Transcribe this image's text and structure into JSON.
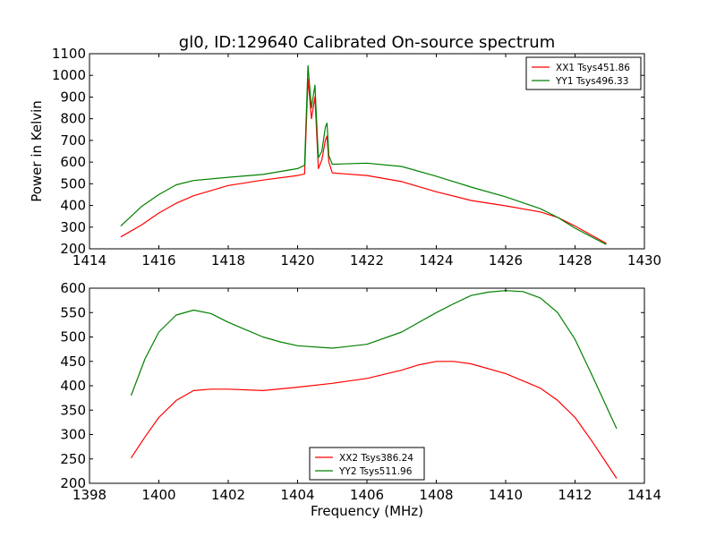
{
  "chart_data": [
    {
      "type": "line",
      "title": "gl0, ID:129640 Calibrated On-source spectrum",
      "xlabel": "",
      "ylabel": "Power in Kelvin",
      "xlim": [
        1414,
        1430
      ],
      "ylim": [
        200,
        1100
      ],
      "xticks": [
        1414,
        1416,
        1418,
        1420,
        1422,
        1424,
        1426,
        1428,
        1430
      ],
      "yticks": [
        200,
        300,
        400,
        500,
        600,
        700,
        800,
        900,
        1000,
        1100
      ],
      "legend": "top-right",
      "grid": false,
      "series": [
        {
          "name": "XX1 Tsys451.86",
          "color": "#ff0000",
          "x": [
            1414.9,
            1415.5,
            1416.0,
            1416.5,
            1417.0,
            1418.0,
            1419.0,
            1420.0,
            1420.2,
            1420.3,
            1420.4,
            1420.5,
            1420.6,
            1420.7,
            1420.8,
            1420.85,
            1420.9,
            1421.0,
            1422.0,
            1423.0,
            1424.0,
            1425.0,
            1426.0,
            1427.0,
            1427.5,
            1428.0,
            1428.9
          ],
          "y": [
            255,
            310,
            365,
            410,
            445,
            492,
            517,
            538,
            545,
            985,
            800,
            900,
            570,
            610,
            700,
            720,
            600,
            550,
            538,
            510,
            463,
            423,
            398,
            370,
            345,
            305,
            225
          ]
        },
        {
          "name": "YY1 Tsys496.33",
          "color": "#008000",
          "x": [
            1414.9,
            1415.5,
            1416.0,
            1416.5,
            1417.0,
            1418.0,
            1419.0,
            1420.0,
            1420.2,
            1420.3,
            1420.4,
            1420.5,
            1420.6,
            1420.7,
            1420.8,
            1420.85,
            1420.9,
            1421.0,
            1422.0,
            1423.0,
            1424.0,
            1425.0,
            1426.0,
            1427.0,
            1427.5,
            1428.0,
            1428.9
          ],
          "y": [
            305,
            395,
            450,
            495,
            515,
            530,
            543,
            570,
            585,
            1045,
            850,
            955,
            620,
            650,
            760,
            780,
            630,
            590,
            595,
            580,
            535,
            485,
            440,
            385,
            345,
            295,
            220
          ]
        }
      ]
    },
    {
      "type": "line",
      "title": "",
      "xlabel": "Frequency (MHz)",
      "ylabel": "",
      "xlim": [
        1398,
        1414
      ],
      "ylim": [
        200,
        600
      ],
      "xticks": [
        1398,
        1400,
        1402,
        1404,
        1406,
        1408,
        1410,
        1412,
        1414
      ],
      "yticks": [
        200,
        250,
        300,
        350,
        400,
        450,
        500,
        550,
        600
      ],
      "legend": "bottom-center",
      "grid": false,
      "series": [
        {
          "name": "XX2 Tsys386.24",
          "color": "#ff0000",
          "x": [
            1399.2,
            1399.6,
            1400.0,
            1400.5,
            1401.0,
            1401.5,
            1402.0,
            1403.0,
            1404.0,
            1405.0,
            1406.0,
            1407.0,
            1407.5,
            1408.0,
            1408.5,
            1409.0,
            1410.0,
            1411.0,
            1411.5,
            1412.0,
            1412.5,
            1413.2
          ],
          "y": [
            252,
            295,
            335,
            370,
            390,
            393,
            393,
            390,
            397,
            405,
            415,
            432,
            443,
            450,
            450,
            445,
            425,
            395,
            370,
            335,
            285,
            210
          ]
        },
        {
          "name": "YY2 Tsys511.96",
          "color": "#008000",
          "x": [
            1399.2,
            1399.6,
            1400.0,
            1400.5,
            1401.0,
            1401.5,
            1402.0,
            1402.5,
            1403.0,
            1403.5,
            1404.0,
            1405.0,
            1406.0,
            1407.0,
            1407.5,
            1408.0,
            1408.5,
            1409.0,
            1409.5,
            1410.0,
            1410.5,
            1411.0,
            1411.5,
            1412.0,
            1412.5,
            1413.2
          ],
          "y": [
            380,
            455,
            510,
            545,
            555,
            548,
            530,
            515,
            500,
            490,
            482,
            477,
            485,
            510,
            530,
            550,
            568,
            585,
            592,
            595,
            593,
            580,
            550,
            495,
            420,
            312
          ]
        }
      ]
    }
  ]
}
